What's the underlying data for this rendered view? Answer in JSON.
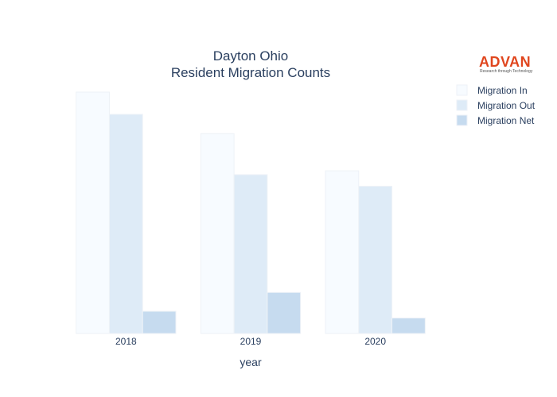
{
  "logo": {
    "name": "ADVAN",
    "tagline": "Research through Technology",
    "color": "#e0461e"
  },
  "chart_data": {
    "type": "bar",
    "title_lines": [
      "Dayton Ohio",
      "Resident Migration Counts"
    ],
    "xlabel": "year",
    "ylabel": "",
    "categories": [
      "2018",
      "2019",
      "2020"
    ],
    "series": [
      {
        "name": "Migration In",
        "values": [
          1000,
          828,
          674
        ],
        "color": "#f7fbff"
      },
      {
        "name": "Migration Out",
        "values": [
          908,
          658,
          610
        ],
        "color": "#deebf7"
      },
      {
        "name": "Migration Net",
        "values": [
          92,
          170,
          64
        ],
        "color": "#c6dbef"
      }
    ],
    "ylim": [
      0,
      1000
    ],
    "y_ticks_shown": false,
    "grid": false,
    "legend_position": "top-right"
  }
}
